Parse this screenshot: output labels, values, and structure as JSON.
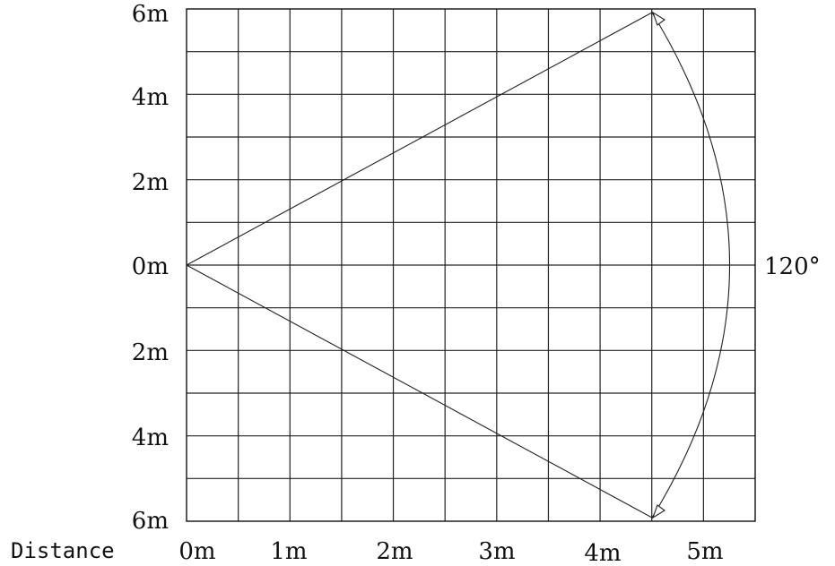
{
  "diagram": {
    "y_labels": [
      "6m",
      "4m",
      "2m",
      "0m",
      "2m",
      "4m",
      "6m"
    ],
    "x_caption": "Distance",
    "x_labels": [
      "0m",
      "1m",
      "2m",
      "3m",
      "4m",
      "5m"
    ],
    "angle_label": "120°",
    "detection_angle_degrees": 120,
    "max_range_m": 5.5,
    "grid": {
      "columns": 11,
      "rows": 12,
      "step_m": 0.5,
      "x_range_m": [
        0,
        5.5
      ],
      "y_range_m": [
        -6,
        6
      ]
    }
  }
}
